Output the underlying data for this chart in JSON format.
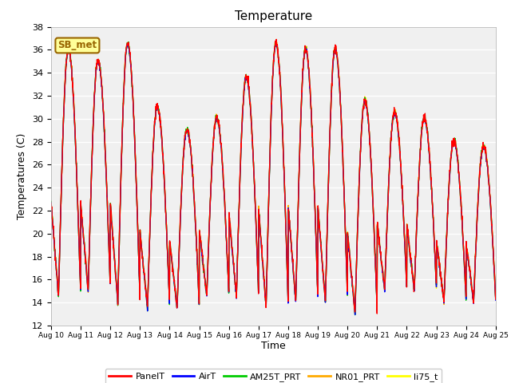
{
  "title": "Temperature",
  "ylabel": "Temperatures (C)",
  "xlabel": "Time",
  "ylim": [
    12,
    38
  ],
  "yticks": [
    12,
    14,
    16,
    18,
    20,
    22,
    24,
    26,
    28,
    30,
    32,
    34,
    36,
    38
  ],
  "start_day": 10,
  "end_day": 25,
  "n_days": 15,
  "series_colors": {
    "PanelT": "#ff0000",
    "AirT": "#0000ff",
    "AM25T_PRT": "#00cc00",
    "NR01_PRT": "#ffaa00",
    "li75_t": "#ffff00"
  },
  "series_order": [
    "li75_t",
    "NR01_PRT",
    "AM25T_PRT",
    "AirT",
    "PanelT"
  ],
  "legend_order": [
    "PanelT",
    "AirT",
    "AM25T_PRT",
    "NR01_PRT",
    "li75_t"
  ],
  "fig_bg_color": "#ffffff",
  "plot_bg_color": "#ffffff",
  "grid_color": "#d8d8d8",
  "station_label": "SB_met",
  "station_box_facecolor": "#ffff99",
  "station_box_edgecolor": "#996600",
  "daily_max": [
    36.0,
    35.0,
    36.5,
    31.0,
    29.0,
    30.0,
    33.5,
    36.5,
    36.0,
    36.0,
    31.5,
    30.5,
    30.0,
    28.0,
    27.5
  ],
  "daily_min": [
    14.5,
    15.0,
    14.0,
    13.5,
    13.5,
    14.5,
    14.5,
    13.5,
    14.0,
    14.0,
    13.0,
    15.0,
    15.0,
    14.0,
    14.0
  ],
  "points_per_day": 144
}
